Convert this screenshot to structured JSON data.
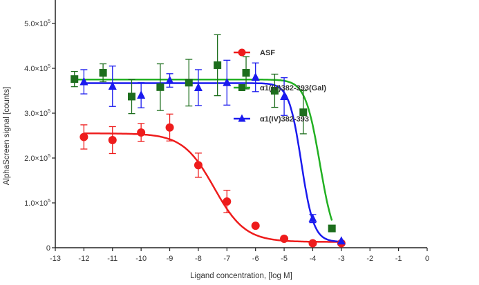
{
  "chart_data": {
    "type": "scatter",
    "title": "",
    "xlabel": "Ligand concentration, [log M]",
    "ylabel": "AlphaScreen signal [counts]",
    "xlim": [
      -13,
      0
    ],
    "ylim": [
      0,
      550000
    ],
    "xticks": [
      "-13",
      "-12",
      "-11",
      "-10",
      "-9",
      "-8",
      "-7",
      "-6",
      "-5",
      "-4",
      "-3",
      "-2",
      "-1",
      "0"
    ],
    "yticks": [
      {
        "value": 0,
        "mant": "0",
        "exp": ""
      },
      {
        "value": 100000,
        "mant": "1.0×10",
        "exp": "5"
      },
      {
        "value": 200000,
        "mant": "2.0×10",
        "exp": "5"
      },
      {
        "value": 300000,
        "mant": "3.0×10",
        "exp": "5"
      },
      {
        "value": 400000,
        "mant": "4.0×10",
        "exp": "5"
      },
      {
        "value": 500000,
        "mant": "5.0×10",
        "exp": "5"
      }
    ],
    "legend_position": "top-right",
    "series": [
      {
        "name": "ASF",
        "color": "#ee1c1c",
        "marker": "circle",
        "x": [
          -12,
          -11,
          -10,
          -9,
          -8,
          -7,
          -6,
          -5,
          -4,
          -3
        ],
        "y": [
          247000,
          240000,
          257000,
          268000,
          184000,
          103000,
          49000,
          20000,
          10000,
          10000
        ],
        "err": [
          27000,
          30000,
          20000,
          30000,
          27000,
          25000,
          0,
          0,
          0,
          0
        ],
        "fit": {
          "top": 255000,
          "bottom": 13000,
          "logEC50": -7.45,
          "hill": 0.8
        }
      },
      {
        "name": "α1(IV)382-393(Gal)",
        "color": "#1d6e1d",
        "line_color": "#22b022",
        "marker": "square",
        "x": [
          -12.33,
          -11.33,
          -10.33,
          -9.33,
          -8.33,
          -7.33,
          -6.33,
          -5.33,
          -4.33,
          -3.33
        ],
        "y": [
          376000,
          390000,
          337000,
          358000,
          368000,
          407000,
          390000,
          350000,
          302000,
          43000
        ],
        "err": [
          17000,
          20000,
          38000,
          52000,
          52000,
          68000,
          36000,
          37000,
          48000,
          0
        ],
        "fit": {
          "top": 375000,
          "bottom": 0,
          "logEC50": -3.75,
          "hill": 1.7
        }
      },
      {
        "name": "α1(IV)382-393",
        "color": "#1a1aee",
        "marker": "triangle",
        "x": [
          -12,
          -11,
          -10,
          -9,
          -8,
          -7,
          -6,
          -5,
          -4,
          -3
        ],
        "y": [
          370000,
          360000,
          340000,
          373000,
          357000,
          368000,
          380000,
          337000,
          65000,
          15000
        ],
        "err": [
          27000,
          45000,
          28000,
          15000,
          40000,
          50000,
          32000,
          42000,
          9000,
          0
        ],
        "fit": {
          "top": 367000,
          "bottom": 13000,
          "logEC50": -4.4,
          "hill": 2.0
        }
      }
    ]
  }
}
